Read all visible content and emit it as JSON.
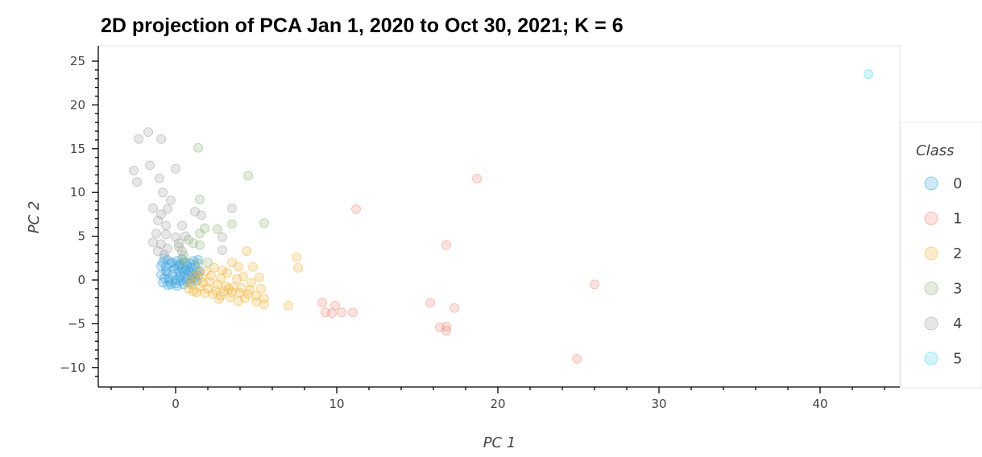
{
  "chart_data": {
    "type": "scatter",
    "title": "2D projection of PCA Jan 1, 2020 to Oct 30, 2021; K = 6",
    "xlabel": "PC 1",
    "ylabel": "PC 2",
    "xlim": [
      -4.5,
      45
    ],
    "ylim": [
      -12,
      26
    ],
    "xticks": [
      0,
      10,
      20,
      30,
      40
    ],
    "yticks": [
      -10,
      -5,
      0,
      5,
      10,
      15,
      20,
      25
    ],
    "grid": false,
    "point_opacity": 0.25,
    "legend": {
      "title": "Class",
      "placement": "right"
    },
    "series": [
      {
        "name": "0",
        "color": "#3da5e0",
        "points": [
          [
            -0.5,
            2.3
          ],
          [
            -0.3,
            1.9
          ],
          [
            0.0,
            1.6
          ],
          [
            0.4,
            1.3
          ],
          [
            0.8,
            1.0
          ],
          [
            1.1,
            0.7
          ],
          [
            -0.6,
            1.0
          ],
          [
            -0.2,
            0.6
          ],
          [
            0.2,
            0.3
          ],
          [
            0.6,
            0.1
          ],
          [
            -0.7,
            0.2
          ],
          [
            -0.4,
            -0.2
          ],
          [
            0.0,
            -0.4
          ],
          [
            0.5,
            -0.5
          ],
          [
            0.9,
            -0.3
          ],
          [
            1.2,
            0.2
          ],
          [
            -0.8,
            -0.3
          ],
          [
            -0.5,
            -0.6
          ],
          [
            0.3,
            1.8
          ],
          [
            0.7,
            1.6
          ],
          [
            1.0,
            1.4
          ],
          [
            1.3,
            1.1
          ],
          [
            -0.9,
            1.6
          ],
          [
            -0.9,
            0.6
          ],
          [
            0.1,
            2.2
          ],
          [
            0.6,
            2.0
          ],
          [
            1.2,
            1.7
          ],
          [
            1.4,
            0.5
          ],
          [
            -0.3,
            -0.5
          ],
          [
            0.3,
            -0.1
          ],
          [
            0.8,
            0.5
          ],
          [
            -0.6,
            1.5
          ],
          [
            0.2,
            1.0
          ],
          [
            0.5,
            0.8
          ],
          [
            1.0,
            0.1
          ],
          [
            -0.1,
            1.3
          ],
          [
            0.4,
            2.4
          ],
          [
            1.5,
            1.0
          ],
          [
            -0.4,
            0.1
          ],
          [
            0.9,
            1.9
          ],
          [
            -0.7,
            2.5
          ],
          [
            0.0,
            0.0
          ],
          [
            0.3,
            0.5
          ],
          [
            0.6,
            1.2
          ],
          [
            1.1,
            2.2
          ],
          [
            1.4,
            2.3
          ],
          [
            -0.2,
            2.0
          ],
          [
            -0.8,
            2.0
          ],
          [
            0.7,
            -0.2
          ],
          [
            1.3,
            -0.1
          ],
          [
            0.1,
            -0.7
          ],
          [
            -0.5,
            0.8
          ],
          [
            0.2,
            1.6
          ],
          [
            0.9,
            0.9
          ]
        ]
      },
      {
        "name": "1",
        "color": "#f08a7a",
        "points": [
          [
            11.2,
            8.1
          ],
          [
            18.7,
            11.6
          ],
          [
            16.8,
            4.0
          ],
          [
            26.0,
            -0.5
          ],
          [
            9.1,
            -2.6
          ],
          [
            9.3,
            -3.7
          ],
          [
            9.7,
            -3.8
          ],
          [
            9.9,
            -2.9
          ],
          [
            10.3,
            -3.7
          ],
          [
            11.0,
            -3.7
          ],
          [
            15.8,
            -2.6
          ],
          [
            16.4,
            -5.4
          ],
          [
            16.8,
            -5.3
          ],
          [
            16.8,
            -5.8
          ],
          [
            17.3,
            -3.2
          ],
          [
            24.9,
            -9.0
          ]
        ]
      },
      {
        "name": "2",
        "color": "#f0b53c",
        "points": [
          [
            1.0,
            -0.5
          ],
          [
            1.5,
            -0.8
          ],
          [
            2.0,
            -1.0
          ],
          [
            2.5,
            -1.2
          ],
          [
            3.0,
            -1.3
          ],
          [
            3.5,
            -1.4
          ],
          [
            4.0,
            -1.5
          ],
          [
            4.5,
            -1.6
          ],
          [
            5.0,
            -1.8
          ],
          [
            5.5,
            -2.1
          ],
          [
            5.5,
            -2.8
          ],
          [
            7.0,
            -2.9
          ],
          [
            7.5,
            2.6
          ],
          [
            7.6,
            1.4
          ],
          [
            4.4,
            3.3
          ],
          [
            3.5,
            2.0
          ],
          [
            3.9,
            1.5
          ],
          [
            4.8,
            1.5
          ],
          [
            5.2,
            0.3
          ],
          [
            2.4,
            1.4
          ],
          [
            3.2,
            0.8
          ],
          [
            2.8,
            0.2
          ],
          [
            1.2,
            0.5
          ],
          [
            1.6,
            0.3
          ],
          [
            2.1,
            -0.2
          ],
          [
            2.6,
            -0.5
          ],
          [
            3.1,
            -0.7
          ],
          [
            3.6,
            -0.8
          ],
          [
            4.1,
            -0.9
          ],
          [
            4.6,
            -1.1
          ],
          [
            1.3,
            -1.4
          ],
          [
            1.8,
            -1.5
          ],
          [
            2.3,
            -1.6
          ],
          [
            2.8,
            -1.8
          ],
          [
            3.4,
            -2.0
          ],
          [
            3.9,
            -2.4
          ],
          [
            4.3,
            -2.1
          ],
          [
            5.0,
            -2.5
          ],
          [
            0.8,
            -1.0
          ],
          [
            1.1,
            -1.3
          ],
          [
            1.7,
            -0.3
          ],
          [
            2.2,
            0.5
          ],
          [
            2.9,
            1.1
          ],
          [
            4.2,
            0.4
          ],
          [
            4.7,
            -0.3
          ],
          [
            5.3,
            -1.0
          ],
          [
            1.9,
            1.0
          ],
          [
            2.7,
            -2.2
          ],
          [
            3.3,
            -1.0
          ],
          [
            3.8,
            0.1
          ],
          [
            0.9,
            0.0
          ],
          [
            1.4,
            0.9
          ]
        ]
      },
      {
        "name": "3",
        "color": "#8fb27a",
        "points": [
          [
            1.4,
            15.1
          ],
          [
            4.5,
            11.9
          ],
          [
            1.5,
            9.2
          ],
          [
            3.5,
            6.4
          ],
          [
            5.5,
            6.5
          ],
          [
            2.6,
            5.8
          ],
          [
            1.8,
            5.9
          ],
          [
            1.5,
            5.3
          ],
          [
            1.1,
            4.2
          ],
          [
            1.5,
            4.0
          ],
          [
            0.8,
            4.6
          ],
          [
            0.5,
            2.8
          ],
          [
            0.5,
            2.1
          ],
          [
            2.0,
            2.0
          ],
          [
            0.2,
            3.8
          ],
          [
            1.4,
            1.9
          ]
        ]
      },
      {
        "name": "4",
        "color": "#a0a0a0",
        "points": [
          [
            -1.7,
            16.9
          ],
          [
            -2.3,
            16.1
          ],
          [
            -0.9,
            16.1
          ],
          [
            -2.6,
            12.5
          ],
          [
            -2.4,
            11.2
          ],
          [
            -1.6,
            13.1
          ],
          [
            -1.0,
            11.6
          ],
          [
            0.0,
            12.7
          ],
          [
            -0.8,
            10.0
          ],
          [
            -0.3,
            9.1
          ],
          [
            -1.4,
            8.2
          ],
          [
            -0.5,
            8.1
          ],
          [
            -0.9,
            7.5
          ],
          [
            1.2,
            7.8
          ],
          [
            1.6,
            7.4
          ],
          [
            3.5,
            8.2
          ],
          [
            -1.1,
            6.8
          ],
          [
            -0.6,
            6.2
          ],
          [
            0.4,
            6.2
          ],
          [
            -1.2,
            5.3
          ],
          [
            -0.6,
            5.2
          ],
          [
            0.0,
            4.9
          ],
          [
            0.6,
            5.0
          ],
          [
            -1.4,
            4.3
          ],
          [
            -0.9,
            4.1
          ],
          [
            -0.5,
            3.6
          ],
          [
            2.9,
            4.9
          ],
          [
            2.9,
            3.4
          ],
          [
            0.2,
            4.2
          ],
          [
            -1.1,
            3.3
          ],
          [
            -0.7,
            2.9
          ],
          [
            0.4,
            3.3
          ]
        ]
      },
      {
        "name": "5",
        "color": "#4fd2e6",
        "points": [
          [
            43.0,
            23.5
          ]
        ]
      }
    ]
  }
}
